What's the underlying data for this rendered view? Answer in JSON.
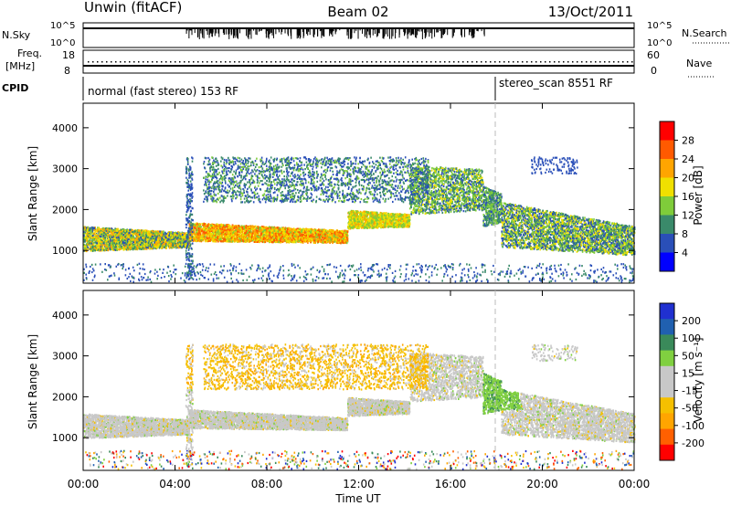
{
  "header": {
    "station": "Unwin (fitACF)",
    "beam": "Beam 02",
    "date": "13/Oct/2011"
  },
  "header_panels": {
    "nsky_label": "N.Sky",
    "nsearch_label": "N.Search",
    "freq_label": "Freq.",
    "freq_unit": "[MHz]",
    "nave_label": "Nave",
    "cpid_label": "CPID",
    "left_ticks_top": [
      "10^5",
      "10^0"
    ],
    "right_ticks_top": [
      "10^5",
      "10^0"
    ],
    "freq_ticks": [
      "18",
      "8"
    ],
    "nave_ticks": [
      "60",
      "0"
    ],
    "cpid_segments": [
      {
        "label": "normal (fast stereo) 153 RF",
        "start_hour": 0
      },
      {
        "label": "stereo_scan 8551 RF",
        "start_hour": 18
      }
    ]
  },
  "colors": {
    "power_scale": [
      "#0000ff",
      "#2a4fb8",
      "#3a8a6a",
      "#7fcc3a",
      "#f0e000",
      "#ffa500",
      "#ff5a00",
      "#ff0000"
    ],
    "velocity_scale": [
      "#ff0000",
      "#ff6000",
      "#ffa500",
      "#f5c000",
      "#c8c8c8",
      "#c8c8c8",
      "#80d040",
      "#3a8a5a",
      "#2060b0",
      "#2030d0"
    ]
  },
  "chart_data": [
    {
      "type": "heatmap",
      "name": "power",
      "ylabel": "Slant Range [km]",
      "yticks": [
        "1000",
        "2000",
        "3000",
        "4000"
      ],
      "ylim": [
        200,
        4600
      ],
      "xlim": [
        0,
        24
      ],
      "colorbar_label": "Power [dB]",
      "colorbar_ticks": [
        "28",
        "24",
        "20",
        "16",
        "12",
        "8",
        "4"
      ]
    },
    {
      "type": "heatmap",
      "name": "velocity",
      "ylabel": "Slant Range [km]",
      "yticks": [
        "1000",
        "2000",
        "3000",
        "4000"
      ],
      "ylim": [
        200,
        4600
      ],
      "xlim": [
        0,
        24
      ],
      "colorbar_label": "Velocity [m s⁻¹]",
      "colorbar_ticks": [
        "200",
        "100",
        "50",
        "15",
        "-15",
        "-50",
        "-100",
        "-200"
      ],
      "xticks": [
        "00:00",
        "04:00",
        "08:00",
        "12:00",
        "16:00",
        "20:00",
        "00:00"
      ],
      "xlabel": "Time UT"
    }
  ]
}
